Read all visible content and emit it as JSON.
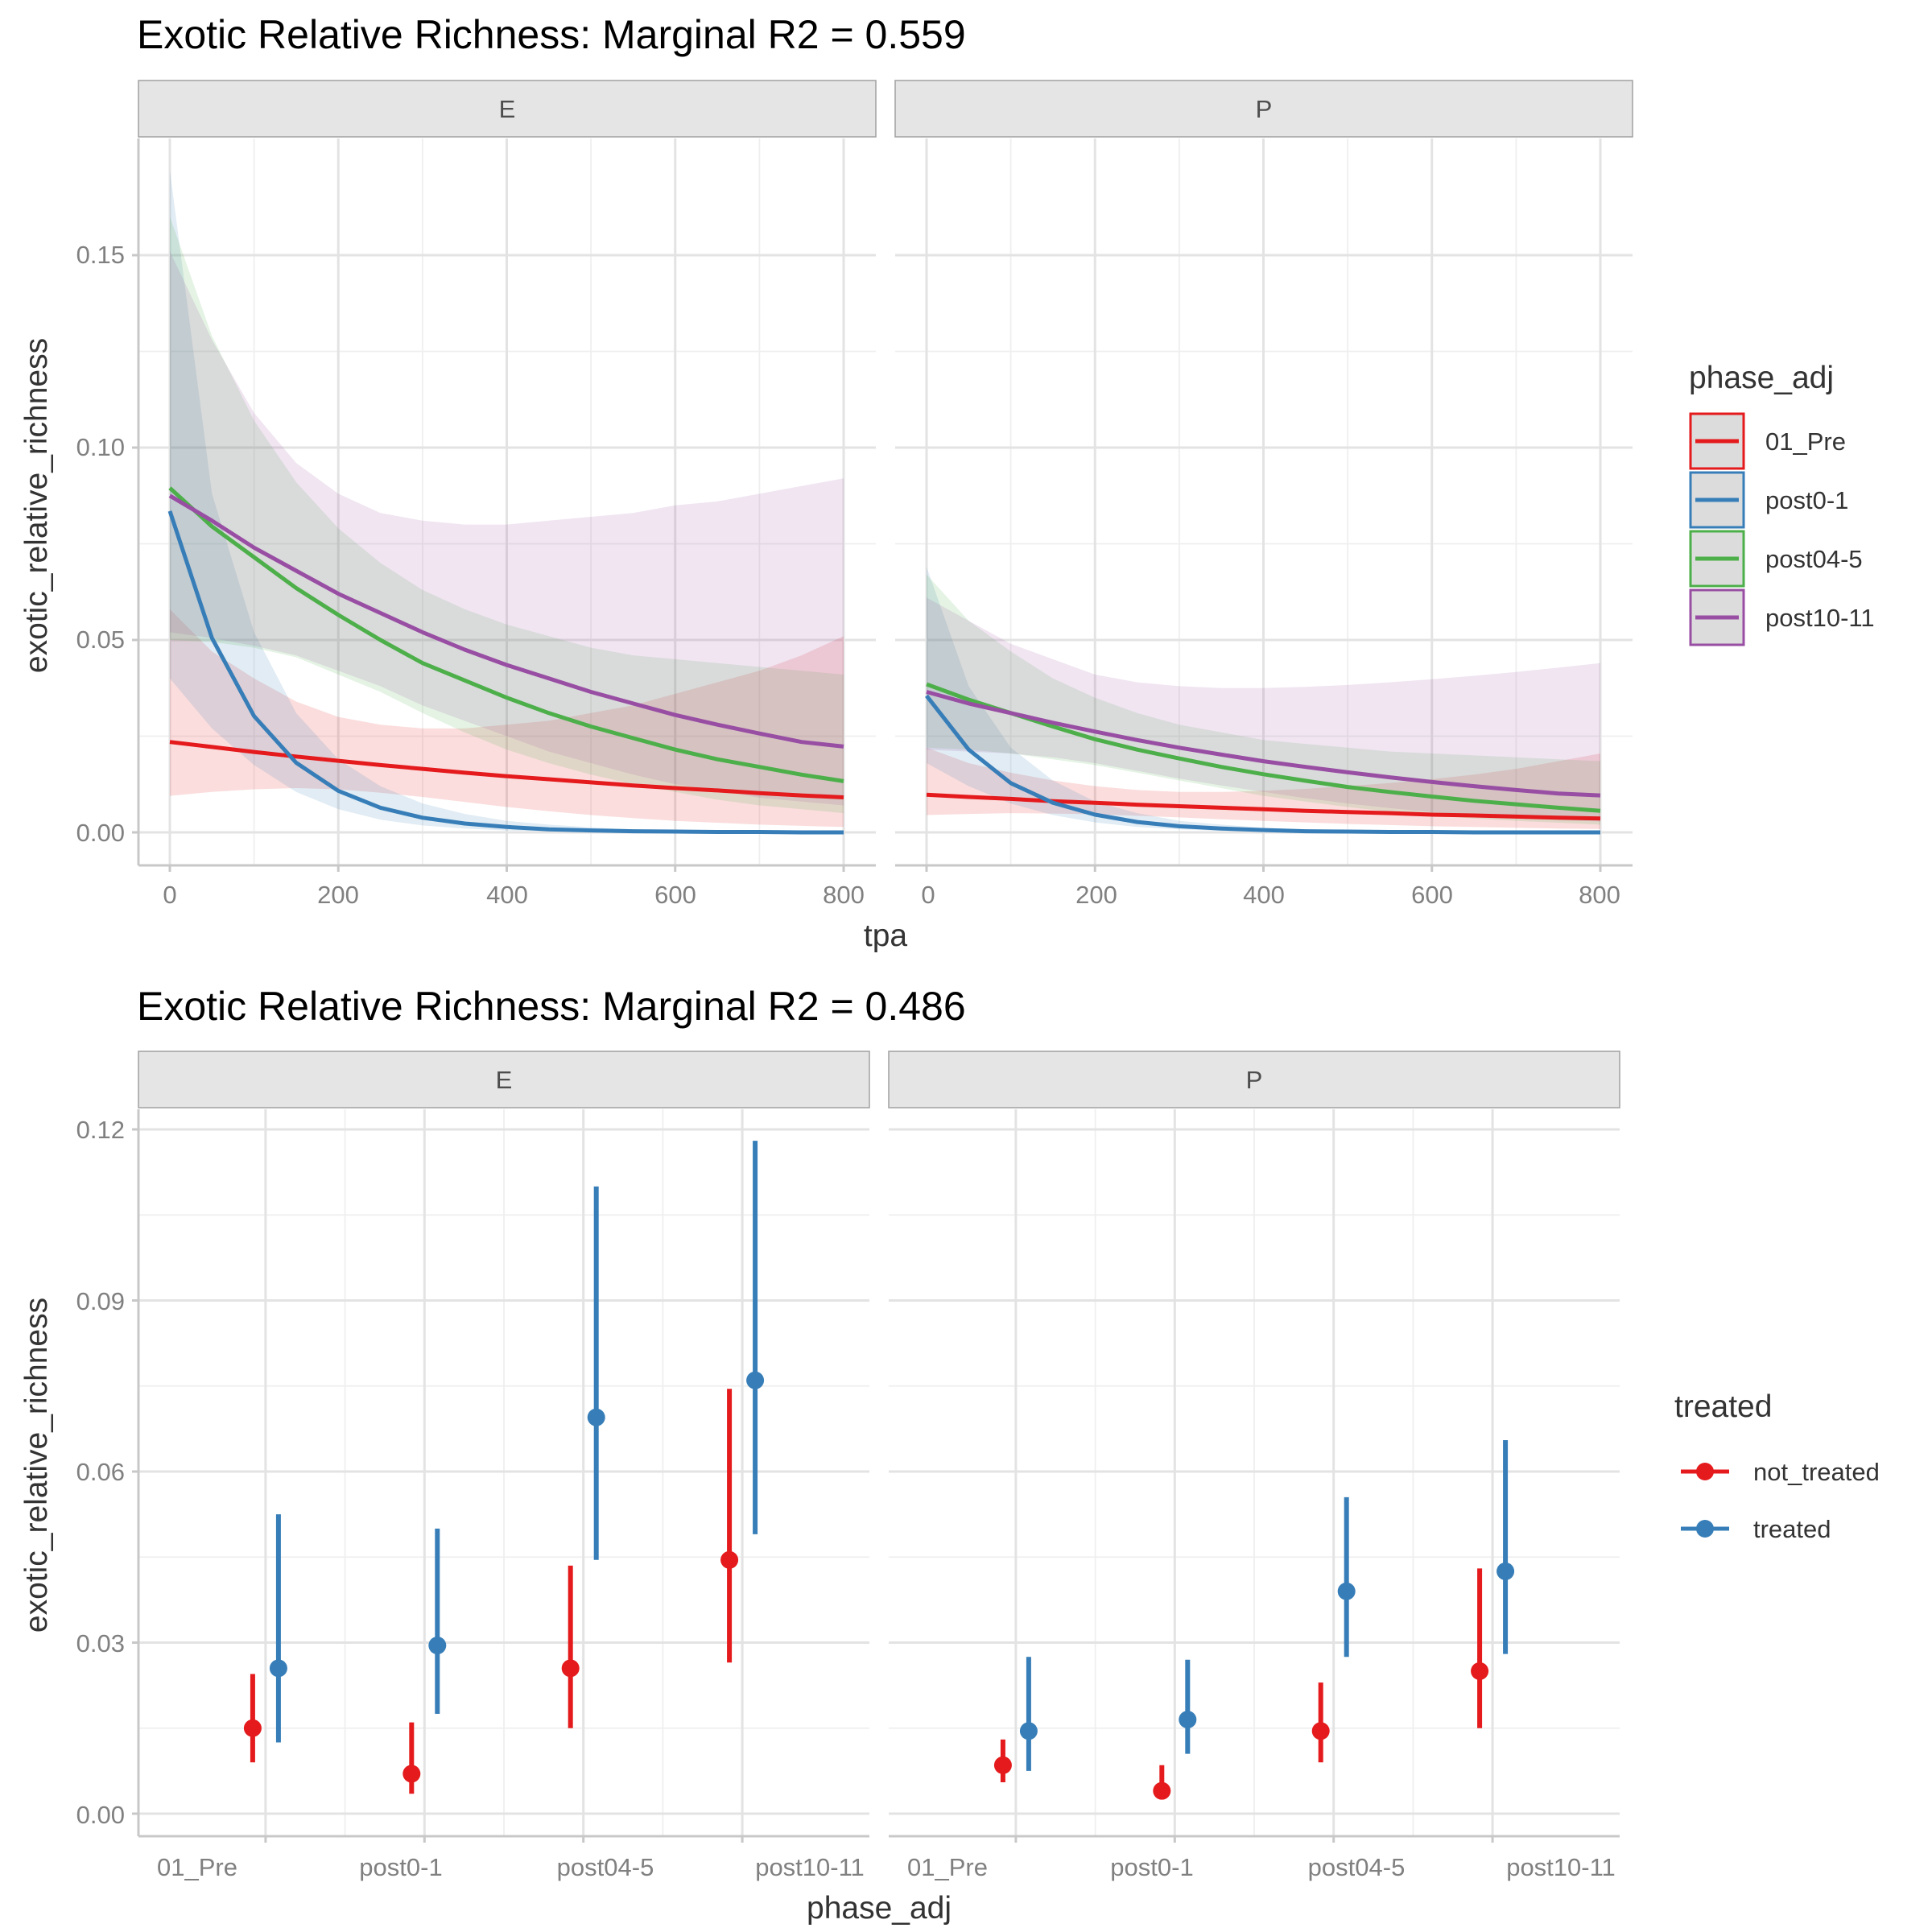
{
  "chart_data": [
    {
      "type": "line",
      "title": "Exotic Relative Richness: Marginal R2 = 0.559",
      "xlabel": "tpa",
      "ylabel": "exotic_relative_richness",
      "facets": [
        "E",
        "P"
      ],
      "xlim": [
        0,
        800
      ],
      "ylim": [
        0,
        0.17
      ],
      "x_ticks": [
        0,
        200,
        400,
        600,
        800
      ],
      "x_tick_labels": [
        "0",
        "200",
        "400",
        "600",
        "800"
      ],
      "y_ticks": [
        0,
        0.05,
        0.1,
        0.15
      ],
      "y_tick_labels": [
        "0.00",
        "0.05",
        "0.10",
        "0.15"
      ],
      "grid": true,
      "legend": {
        "title": "phase_adj",
        "placement": "right",
        "entries": [
          "01_Pre",
          "post0-1",
          "post04-5",
          "post10-11"
        ]
      },
      "x": [
        0,
        50,
        100,
        150,
        200,
        250,
        300,
        350,
        400,
        450,
        500,
        550,
        600,
        650,
        700,
        750,
        800
      ],
      "series": [
        {
          "name": "01_Pre",
          "color": "#E41A1C",
          "facet": "E",
          "values": [
            0.0235,
            0.0222,
            0.0209,
            0.0197,
            0.0186,
            0.0175,
            0.0165,
            0.0155,
            0.0146,
            0.0138,
            0.013,
            0.0122,
            0.0115,
            0.0109,
            0.0102,
            0.0096,
            0.0091
          ],
          "lower": [
            0.0095,
            0.0105,
            0.0112,
            0.0115,
            0.0112,
            0.0103,
            0.0092,
            0.0079,
            0.0066,
            0.0055,
            0.0045,
            0.0037,
            0.003,
            0.0025,
            0.002,
            0.0017,
            0.0014
          ],
          "upper": [
            0.058,
            0.047,
            0.04,
            0.034,
            0.03,
            0.028,
            0.027,
            0.027,
            0.028,
            0.029,
            0.031,
            0.033,
            0.036,
            0.039,
            0.042,
            0.046,
            0.051
          ]
        },
        {
          "name": "post0-1",
          "color": "#377EB8",
          "facet": "E",
          "values": [
            0.0835,
            0.0505,
            0.0302,
            0.0181,
            0.0108,
            0.0064,
            0.0038,
            0.0023,
            0.0014,
            0.0008,
            0.0005,
            0.0003,
            0.0002,
            0.0001,
            0.0001,
            0.0,
            0.0
          ],
          "lower": [
            0.04,
            0.027,
            0.0175,
            0.0105,
            0.006,
            0.0033,
            0.0018,
            0.001,
            0.0005,
            0.0003,
            0.0001,
            0.0001,
            0.0,
            0.0,
            0.0,
            0.0,
            0.0
          ],
          "upper": [
            0.172,
            0.088,
            0.052,
            0.031,
            0.019,
            0.012,
            0.0075,
            0.0048,
            0.003,
            0.002,
            0.0013,
            0.0008,
            0.0005,
            0.0003,
            0.0002,
            0.0001,
            0.0001
          ]
        },
        {
          "name": "post04-5",
          "color": "#4DAF4A",
          "facet": "E",
          "values": [
            0.0895,
            0.0795,
            0.0715,
            0.0635,
            0.0565,
            0.05,
            0.044,
            0.0395,
            0.035,
            0.031,
            0.0275,
            0.0245,
            0.0215,
            0.019,
            0.017,
            0.015,
            0.0133
          ],
          "lower": [
            0.05,
            0.0495,
            0.048,
            0.0455,
            0.041,
            0.0365,
            0.031,
            0.026,
            0.0215,
            0.018,
            0.015,
            0.0125,
            0.0105,
            0.0085,
            0.007,
            0.006,
            0.005
          ],
          "upper": [
            0.16,
            0.129,
            0.107,
            0.091,
            0.079,
            0.07,
            0.063,
            0.058,
            0.054,
            0.051,
            0.048,
            0.046,
            0.045,
            0.044,
            0.043,
            0.042,
            0.041
          ]
        },
        {
          "name": "post10-11",
          "color": "#984EA3",
          "facet": "E",
          "values": [
            0.0875,
            0.081,
            0.074,
            0.068,
            0.062,
            0.057,
            0.052,
            0.0475,
            0.0435,
            0.04,
            0.0365,
            0.0335,
            0.0305,
            0.028,
            0.0257,
            0.0235,
            0.0223
          ],
          "lower": [
            0.052,
            0.0505,
            0.0485,
            0.046,
            0.042,
            0.038,
            0.033,
            0.029,
            0.025,
            0.021,
            0.018,
            0.015,
            0.0125,
            0.011,
            0.009,
            0.008,
            0.007
          ],
          "upper": [
            0.151,
            0.128,
            0.109,
            0.096,
            0.088,
            0.083,
            0.081,
            0.08,
            0.08,
            0.081,
            0.082,
            0.083,
            0.085,
            0.086,
            0.088,
            0.09,
            0.092
          ]
        },
        {
          "name": "01_Pre",
          "color": "#E41A1C",
          "facet": "P",
          "values": [
            0.0098,
            0.0092,
            0.0087,
            0.0081,
            0.0077,
            0.0072,
            0.0068,
            0.0064,
            0.006,
            0.0056,
            0.0053,
            0.005,
            0.0046,
            0.0044,
            0.0041,
            0.0038,
            0.0036
          ],
          "lower": [
            0.0045,
            0.0048,
            0.005,
            0.0049,
            0.0047,
            0.0043,
            0.0039,
            0.0034,
            0.003,
            0.0026,
            0.0022,
            0.0019,
            0.0016,
            0.0014,
            0.0012,
            0.001,
            0.0009
          ],
          "upper": [
            0.022,
            0.018,
            0.0155,
            0.0135,
            0.012,
            0.011,
            0.0105,
            0.0105,
            0.0108,
            0.0113,
            0.012,
            0.0128,
            0.0138,
            0.015,
            0.0165,
            0.0185,
            0.0205
          ]
        },
        {
          "name": "post0-1",
          "color": "#377EB8",
          "facet": "P",
          "values": [
            0.0355,
            0.0215,
            0.0128,
            0.0077,
            0.0046,
            0.0027,
            0.0016,
            0.001,
            0.0006,
            0.0003,
            0.0002,
            0.0001,
            0.0001,
            0.0,
            0.0,
            0.0,
            0.0
          ],
          "lower": [
            0.018,
            0.012,
            0.0075,
            0.0045,
            0.0026,
            0.0014,
            0.0008,
            0.0004,
            0.0002,
            0.0001,
            0.0001,
            0.0,
            0.0,
            0.0,
            0.0,
            0.0,
            0.0
          ],
          "upper": [
            0.069,
            0.038,
            0.022,
            0.0135,
            0.008,
            0.005,
            0.003,
            0.002,
            0.0012,
            0.0008,
            0.0005,
            0.0003,
            0.0002,
            0.0001,
            0.0001,
            0.0001,
            0.0
          ]
        },
        {
          "name": "post04-5",
          "color": "#4DAF4A",
          "facet": "P",
          "values": [
            0.0385,
            0.0345,
            0.031,
            0.0275,
            0.0242,
            0.0215,
            0.0192,
            0.017,
            0.0151,
            0.0134,
            0.0118,
            0.0105,
            0.0093,
            0.0082,
            0.0073,
            0.0064,
            0.0056
          ],
          "lower": [
            0.022,
            0.0215,
            0.0205,
            0.019,
            0.0175,
            0.0155,
            0.0135,
            0.0115,
            0.0095,
            0.008,
            0.0066,
            0.0054,
            0.0044,
            0.0036,
            0.003,
            0.0025,
            0.002
          ],
          "upper": [
            0.067,
            0.055,
            0.047,
            0.04,
            0.035,
            0.031,
            0.028,
            0.026,
            0.024,
            0.023,
            0.022,
            0.021,
            0.0205,
            0.02,
            0.0195,
            0.019,
            0.0185
          ]
        },
        {
          "name": "post10-11",
          "color": "#984EA3",
          "facet": "P",
          "values": [
            0.0365,
            0.0335,
            0.031,
            0.0285,
            0.0262,
            0.024,
            0.022,
            0.0202,
            0.0185,
            0.017,
            0.0156,
            0.0143,
            0.0131,
            0.012,
            0.011,
            0.0101,
            0.0096
          ],
          "lower": [
            0.0215,
            0.021,
            0.0205,
            0.0195,
            0.018,
            0.016,
            0.014,
            0.0122,
            0.0105,
            0.0089,
            0.0075,
            0.0063,
            0.0053,
            0.0045,
            0.0038,
            0.0032,
            0.0028
          ],
          "upper": [
            0.061,
            0.055,
            0.049,
            0.045,
            0.041,
            0.039,
            0.038,
            0.0375,
            0.0375,
            0.0378,
            0.0383,
            0.039,
            0.0398,
            0.0407,
            0.0417,
            0.0428,
            0.044
          ]
        }
      ]
    },
    {
      "type": "scatter",
      "title": "Exotic Relative Richness: Marginal R2 = 0.486",
      "xlabel": "phase_adj",
      "ylabel": "exotic_relative_richness",
      "facets": [
        "E",
        "P"
      ],
      "categories": [
        "01_Pre",
        "post0-1",
        "post04-5",
        "post10-11"
      ],
      "ylim": [
        -0.002,
        0.1235
      ],
      "y_ticks": [
        0,
        0.03,
        0.06,
        0.09,
        0.12
      ],
      "y_tick_labels": [
        "0.00",
        "0.03",
        "0.06",
        "0.09",
        "0.12"
      ],
      "grid": true,
      "legend": {
        "title": "treated",
        "placement": "right",
        "entries": [
          "not_treated",
          "treated"
        ]
      },
      "series": [
        {
          "name": "not_treated",
          "color": "#E41A1C",
          "facet": "E",
          "values": [
            0.015,
            0.007,
            0.0255,
            0.0445
          ],
          "lower": [
            0.009,
            0.0035,
            0.015,
            0.0265
          ],
          "upper": [
            0.0245,
            0.016,
            0.0435,
            0.0745
          ]
        },
        {
          "name": "treated",
          "color": "#377EB8",
          "facet": "E",
          "values": [
            0.0255,
            0.0295,
            0.0695,
            0.076
          ],
          "lower": [
            0.0125,
            0.0175,
            0.0445,
            0.049
          ],
          "upper": [
            0.0525,
            0.05,
            0.11,
            0.118
          ]
        },
        {
          "name": "not_treated",
          "color": "#E41A1C",
          "facet": "P",
          "values": [
            0.0085,
            0.004,
            0.0145,
            0.025
          ],
          "lower": [
            0.0055,
            0.0025,
            0.009,
            0.015
          ],
          "upper": [
            0.013,
            0.0085,
            0.023,
            0.043
          ]
        },
        {
          "name": "treated",
          "color": "#377EB8",
          "facet": "P",
          "values": [
            0.0145,
            0.0165,
            0.039,
            0.0425
          ],
          "lower": [
            0.0075,
            0.0105,
            0.0275,
            0.028
          ],
          "upper": [
            0.0275,
            0.027,
            0.0555,
            0.0655
          ]
        }
      ]
    }
  ]
}
